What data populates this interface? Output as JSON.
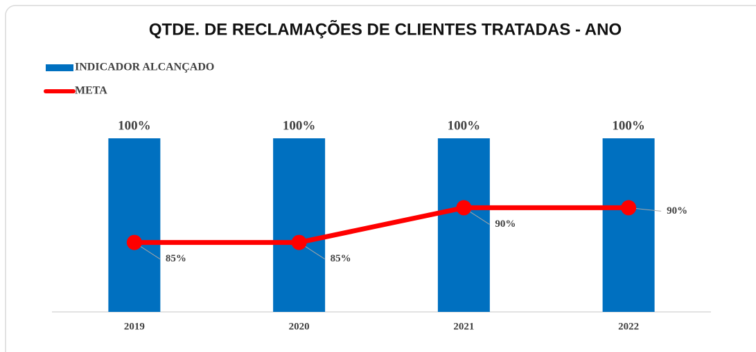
{
  "chart_data": {
    "type": "bar-line",
    "title": "QTDE. DE RECLAMAÇÕES DE CLIENTES TRATADAS - ANO",
    "categories": [
      "2019",
      "2020",
      "2021",
      "2022"
    ],
    "ylim": [
      0,
      100
    ],
    "y2lim": [
      75,
      100
    ],
    "series": [
      {
        "name": "INDICADOR ALCANÇADO",
        "type": "bar",
        "color": "#0070c0",
        "values": [
          100,
          100,
          100,
          100
        ],
        "value_labels": [
          "100%",
          "100%",
          "100%",
          "100%"
        ]
      },
      {
        "name": "META",
        "type": "line",
        "axis": "y2",
        "color": "#ff0000",
        "values": [
          85,
          85,
          90,
          90
        ],
        "value_labels": [
          "85%",
          "85%",
          "90%",
          "90%"
        ]
      }
    ],
    "legend": "top-left"
  }
}
